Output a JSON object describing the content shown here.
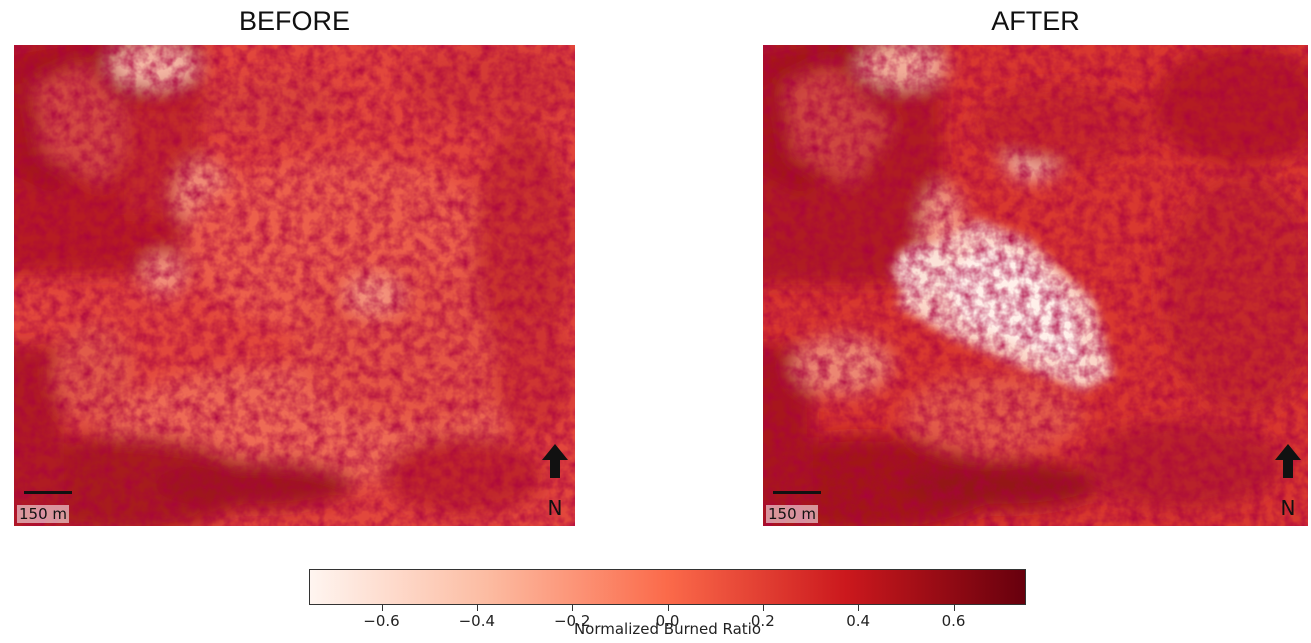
{
  "panels": {
    "before": {
      "title": "BEFORE",
      "scale_label": "150 m",
      "north_label": "N"
    },
    "after": {
      "title": "AFTER",
      "scale_label": "150 m",
      "north_label": "N"
    }
  },
  "colorbar": {
    "label": "Normalized Burned Ratio",
    "colormap": "Reds",
    "range": [
      -0.75,
      0.75
    ],
    "colors": [
      "#fff5f0",
      "#fcbba1",
      "#fb6a4a",
      "#cb181d",
      "#67000d"
    ],
    "ticks": [
      -0.6,
      -0.4,
      -0.2,
      0.0,
      0.2,
      0.4,
      0.6
    ],
    "tick_labels": [
      "−0.6",
      "−0.4",
      "−0.2",
      "0.0",
      "0.2",
      "0.4",
      "0.6"
    ]
  }
}
